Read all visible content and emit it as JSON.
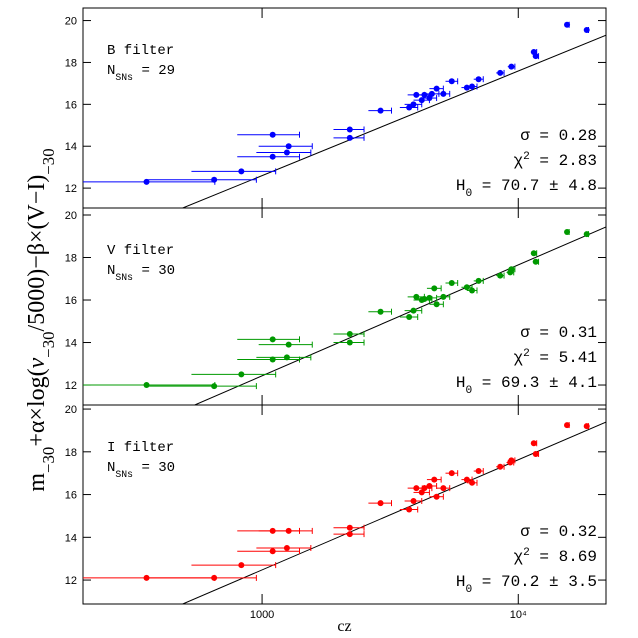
{
  "chart_data": [
    {
      "type": "scatter",
      "color": "#0000ff",
      "log_x": true,
      "xlim": [
        200,
        22000
      ],
      "ylim": [
        11.05,
        20.6
      ],
      "yticks": [
        12,
        14,
        16,
        18,
        20
      ],
      "xerr": 300,
      "labels": [
        [
          {
            "text": "B filter"
          }
        ],
        [
          {
            "text": "N"
          },
          {
            "text": "SNs",
            "shift": "sub"
          },
          {
            "text": " = 29"
          }
        ]
      ],
      "stats": [
        [
          {
            "text": "σ = 0.28"
          }
        ],
        [
          {
            "text": "χ"
          },
          {
            "text": "2",
            "shift": "super"
          },
          {
            "text": " = 2.83"
          }
        ],
        [
          {
            "text": "H"
          },
          {
            "text": "0",
            "shift": "sub"
          },
          {
            "text": " = 70.7 ± 4.8"
          }
        ]
      ],
      "x": [
        354,
        650,
        830,
        1100,
        1100,
        1270,
        1250,
        2200,
        2200,
        2900,
        3750,
        3900,
        4000,
        4200,
        4300,
        4500,
        4600,
        4800,
        5100,
        5500,
        6300,
        6600,
        7000,
        8500,
        9400,
        11500,
        11700,
        15500,
        18500
      ],
      "values": [
        12.3,
        12.4,
        12.8,
        14.55,
        13.5,
        14.0,
        13.7,
        14.8,
        14.4,
        15.7,
        15.85,
        16.0,
        16.45,
        16.2,
        16.45,
        16.3,
        16.5,
        16.75,
        16.5,
        17.1,
        16.8,
        16.85,
        17.2,
        17.5,
        17.8,
        18.5,
        18.3,
        19.8,
        19.55
      ],
      "fit": {
        "x": [
          490,
          22000
        ],
        "values": [
          11.05,
          19.3
        ]
      }
    },
    {
      "type": "scatter",
      "color": "#009900",
      "log_x": true,
      "xlim": [
        200,
        22000
      ],
      "ylim": [
        11.06,
        20.33
      ],
      "yticks": [
        12,
        14,
        16,
        18,
        20
      ],
      "xerr": 300,
      "ylabel": [
        {
          "text": "m"
        },
        {
          "text": "−30",
          "shift": "sub"
        },
        {
          "text": "+α×log("
        },
        {
          "text": "v",
          "italic": true
        },
        {
          "text": "−30",
          "shift": "sub"
        },
        {
          "text": "/5000)−β×(V−I)"
        },
        {
          "text": "−30",
          "shift": "sub"
        }
      ],
      "labels": [
        [
          {
            "text": "V filter"
          }
        ],
        [
          {
            "text": "N"
          },
          {
            "text": "SNs",
            "shift": "sub"
          },
          {
            "text": " = 30"
          }
        ]
      ],
      "stats": [
        [
          {
            "text": "σ = 0.31"
          }
        ],
        [
          {
            "text": "χ"
          },
          {
            "text": "2",
            "shift": "super"
          },
          {
            "text": " = 5.41"
          }
        ],
        [
          {
            "text": "H"
          },
          {
            "text": "0",
            "shift": "sub"
          },
          {
            "text": " = 69.3 ± 4.1"
          }
        ]
      ],
      "x": [
        354,
        650,
        830,
        1100,
        1100,
        1270,
        1250,
        2200,
        2200,
        2900,
        3750,
        3900,
        4000,
        4200,
        4300,
        4500,
        4700,
        4800,
        5100,
        5500,
        6300,
        6600,
        7000,
        8500,
        9300,
        9400,
        11500,
        11700,
        15500,
        18500
      ],
      "values": [
        12.0,
        11.95,
        12.5,
        14.15,
        13.2,
        13.9,
        13.3,
        14.4,
        14.0,
        15.45,
        15.2,
        15.5,
        16.15,
        16.0,
        16.05,
        16.1,
        16.55,
        15.8,
        16.15,
        16.8,
        16.6,
        16.45,
        16.9,
        17.15,
        17.3,
        17.45,
        18.2,
        17.8,
        19.2,
        19.1
      ],
      "fit": {
        "x": [
          546,
          22000
        ],
        "values": [
          11.06,
          19.44
        ]
      }
    },
    {
      "type": "scatter",
      "color": "#ff0000",
      "log_x": true,
      "xlim": [
        200,
        22000
      ],
      "ylim": [
        10.88,
        20.19
      ],
      "yticks": [
        12,
        14,
        16,
        18,
        20
      ],
      "xerr": 300,
      "xticks": [
        1000,
        {
          "value": 10000,
          "label": "10⁴"
        }
      ],
      "xlabel": "cz",
      "labels": [
        [
          {
            "text": "I filter"
          }
        ],
        [
          {
            "text": "N"
          },
          {
            "text": "SNs",
            "shift": "sub"
          },
          {
            "text": " = 30"
          }
        ]
      ],
      "stats": [
        [
          {
            "text": "σ = 0.32"
          }
        ],
        [
          {
            "text": "χ"
          },
          {
            "text": "2",
            "shift": "super"
          },
          {
            "text": " = 8.69"
          }
        ],
        [
          {
            "text": "H"
          },
          {
            "text": "0",
            "shift": "sub"
          },
          {
            "text": " = 70.2 ± 3.5"
          }
        ]
      ],
      "x": [
        354,
        650,
        830,
        1100,
        1100,
        1270,
        1250,
        2200,
        2200,
        2900,
        3750,
        3900,
        4000,
        4200,
        4300,
        4500,
        4700,
        4800,
        5100,
        5500,
        6300,
        6600,
        7000,
        8500,
        9300,
        9400,
        11500,
        11700,
        15500,
        18500
      ],
      "values": [
        12.1,
        12.1,
        12.7,
        14.3,
        13.35,
        14.3,
        13.5,
        14.45,
        14.15,
        15.6,
        15.3,
        15.7,
        16.3,
        16.1,
        16.3,
        16.4,
        16.7,
        15.9,
        16.3,
        17.0,
        16.7,
        16.55,
        17.1,
        17.3,
        17.5,
        17.6,
        18.4,
        17.9,
        19.25,
        19.2
      ],
      "fit": {
        "x": [
          490,
          22000
        ],
        "values": [
          10.88,
          19.39
        ]
      }
    }
  ]
}
